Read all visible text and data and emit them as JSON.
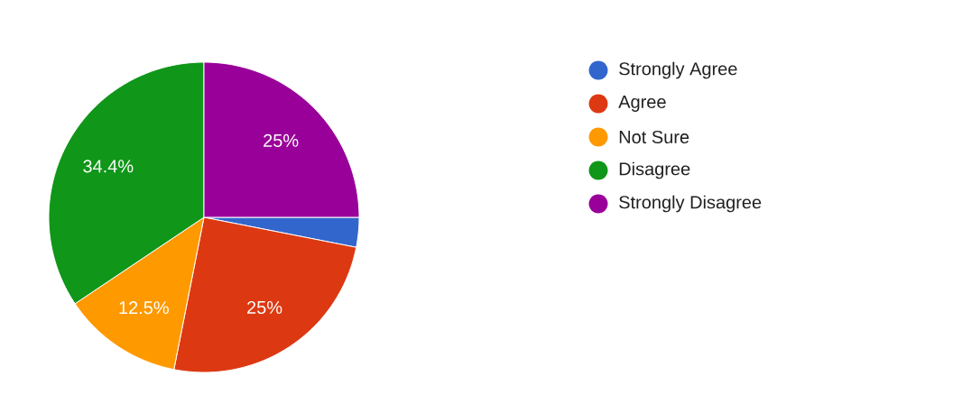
{
  "chart_data": {
    "type": "pie",
    "categories": [
      "Strongly Agree",
      "Agree",
      "Not Sure",
      "Disagree",
      "Strongly Disagree"
    ],
    "values": [
      3.1,
      25,
      12.5,
      34.4,
      25
    ],
    "colors": [
      "#3366cc",
      "#dc3912",
      "#ff9900",
      "#109618",
      "#990099"
    ],
    "value_labels": [
      null,
      "25%",
      "12.5%",
      "34.4%",
      "25%"
    ],
    "legend": "right"
  }
}
